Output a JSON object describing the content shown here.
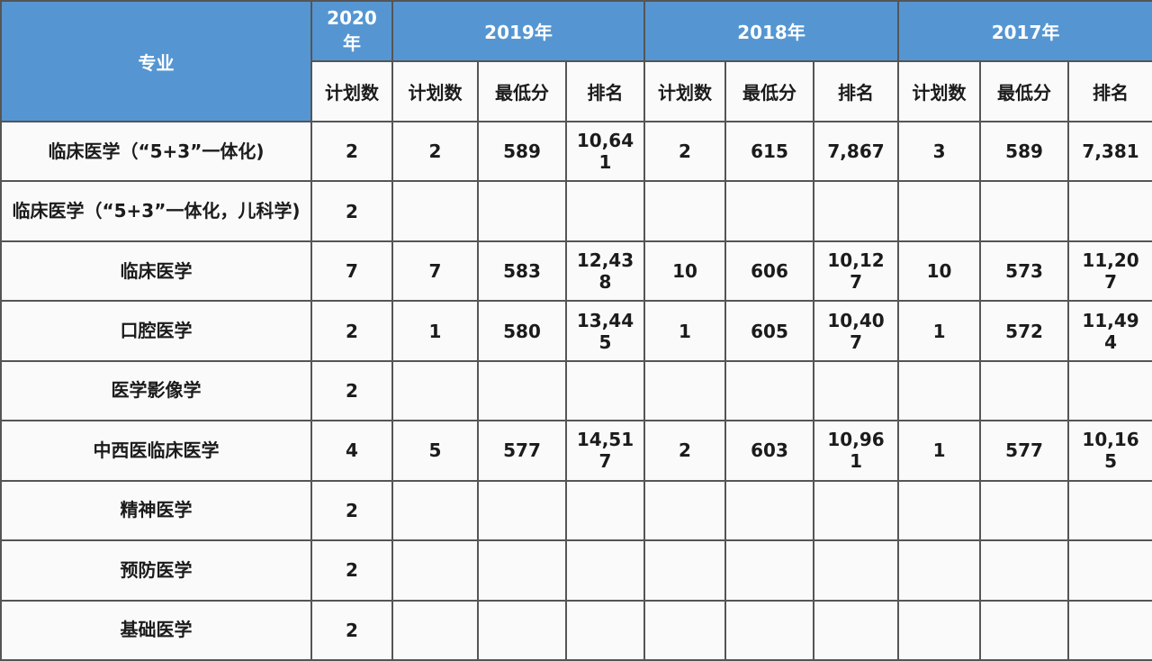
{
  "chart_data": {
    "type": "table",
    "header": {
      "specialty": "专业",
      "years": [
        "2020年",
        "2019年",
        "2018年",
        "2017年"
      ],
      "sub_plan": "计划数",
      "sub_min": "最低分",
      "sub_rank": "排名"
    },
    "rows": [
      {
        "specialty": "临床医学（“5+3”一体化)",
        "cells": [
          "2",
          "2",
          "589",
          "10,641",
          "2",
          "615",
          "7,867",
          "3",
          "589",
          "7,381"
        ]
      },
      {
        "specialty": "临床医学（“5+3”一体化，儿科学)",
        "cells": [
          "2",
          "",
          "",
          "",
          "",
          "",
          "",
          "",
          "",
          ""
        ]
      },
      {
        "specialty": "临床医学",
        "cells": [
          "7",
          "7",
          "583",
          "12,438",
          "10",
          "606",
          "10,127",
          "10",
          "573",
          "11,207"
        ]
      },
      {
        "specialty": "口腔医学",
        "cells": [
          "2",
          "1",
          "580",
          "13,445",
          "1",
          "605",
          "10,407",
          "1",
          "572",
          "11,494"
        ]
      },
      {
        "specialty": "医学影像学",
        "cells": [
          "2",
          "",
          "",
          "",
          "",
          "",
          "",
          "",
          "",
          ""
        ]
      },
      {
        "specialty": "中西医临床医学",
        "cells": [
          "4",
          "5",
          "577",
          "14,517",
          "2",
          "603",
          "10,961",
          "1",
          "577",
          "10,165"
        ]
      },
      {
        "specialty": "精神医学",
        "cells": [
          "2",
          "",
          "",
          "",
          "",
          "",
          "",
          "",
          "",
          ""
        ]
      },
      {
        "specialty": "预防医学",
        "cells": [
          "2",
          "",
          "",
          "",
          "",
          "",
          "",
          "",
          "",
          ""
        ]
      },
      {
        "specialty": "基础医学",
        "cells": [
          "2",
          "",
          "",
          "",
          "",
          "",
          "",
          "",
          "",
          ""
        ]
      }
    ]
  },
  "colors": {
    "header_bg": "#5596d2",
    "header_text": "#ffffff",
    "body_bg": "#fafafa",
    "body_text": "#1b1b1b",
    "border": "#555555"
  }
}
